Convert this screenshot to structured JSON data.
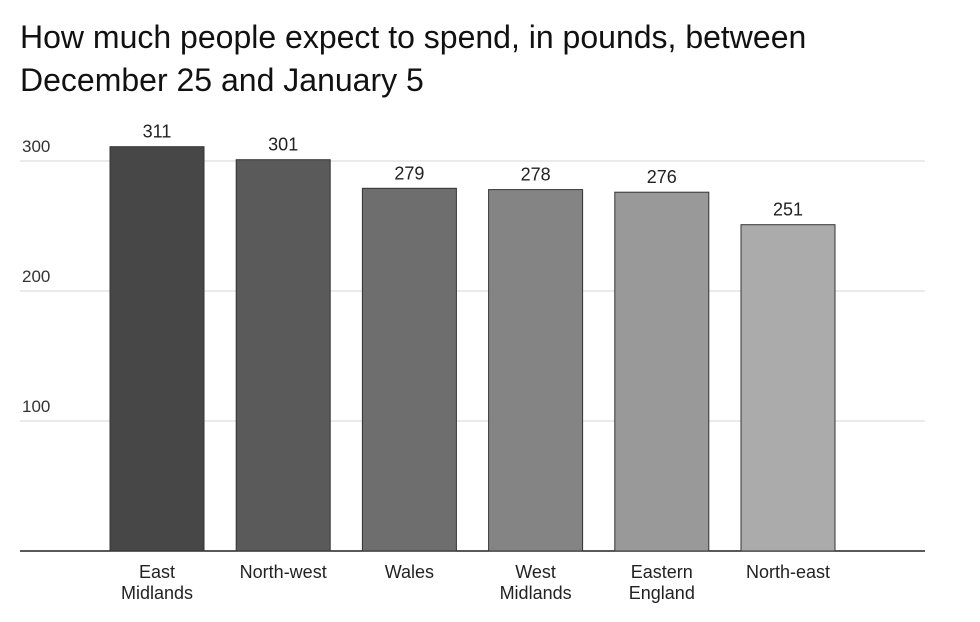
{
  "chart_data": {
    "type": "bar",
    "title": [
      "How much people expect to spend, in pounds, between",
      "December 25 and January 5"
    ],
    "categories": [
      "East Midlands",
      "North-west",
      "Wales",
      "West Midlands",
      "Eastern England",
      "North-east"
    ],
    "values": [
      311,
      301,
      279,
      278,
      276,
      251
    ],
    "colors": [
      "#474747",
      "#5a5a5a",
      "#6e6e6e",
      "#848484",
      "#999999",
      "#ababab"
    ],
    "ylim": [
      0,
      320
    ],
    "yticks": [
      100,
      200,
      300
    ],
    "grid": true
  }
}
